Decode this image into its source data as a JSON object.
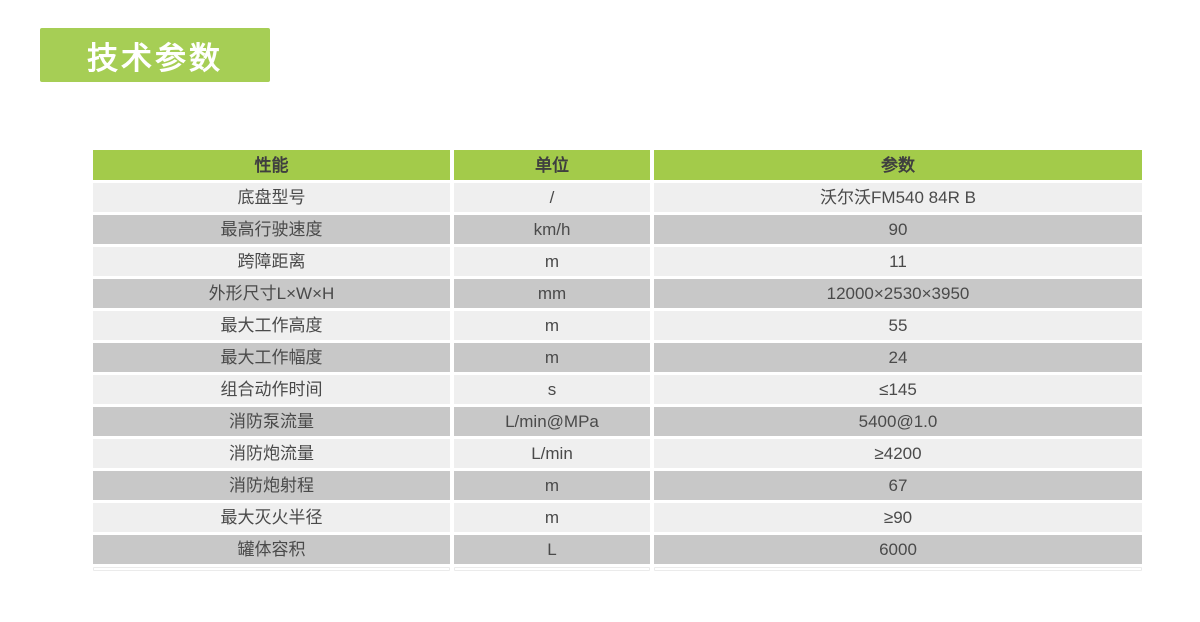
{
  "title_badge": {
    "label": "技术参数",
    "bg": "#a6ce55",
    "text_color": "#ffffff"
  },
  "table": {
    "header": {
      "bg": "#a3cb4a",
      "columns": [
        "性能",
        "单位",
        "参数"
      ]
    },
    "row_colors": {
      "light": "#efefef",
      "dark": "#c8c8c8"
    },
    "rows": [
      {
        "name": "底盘型号",
        "unit": "/",
        "value": "沃尔沃FM540 84R B"
      },
      {
        "name": "最高行驶速度",
        "unit": "km/h",
        "value": "90"
      },
      {
        "name": "跨障距离",
        "unit": "m",
        "value": "11"
      },
      {
        "name": "外形尺寸L×W×H",
        "unit": "mm",
        "value": "12000×2530×3950"
      },
      {
        "name": "最大工作高度",
        "unit": "m",
        "value": "55"
      },
      {
        "name": "最大工作幅度",
        "unit": "m",
        "value": "24"
      },
      {
        "name": "组合动作时间",
        "unit": "s",
        "value": "≤145"
      },
      {
        "name": "消防泵流量",
        "unit": "L/min@MPa",
        "value": "5400@1.0"
      },
      {
        "name": "消防炮流量",
        "unit": "L/min",
        "value": "≥4200"
      },
      {
        "name": "消防炮射程",
        "unit": "m",
        "value": "67"
      },
      {
        "name": "最大灭火半径",
        "unit": "m",
        "value": "≥90"
      },
      {
        "name": "罐体容积",
        "unit": "L",
        "value": "6000"
      }
    ]
  }
}
